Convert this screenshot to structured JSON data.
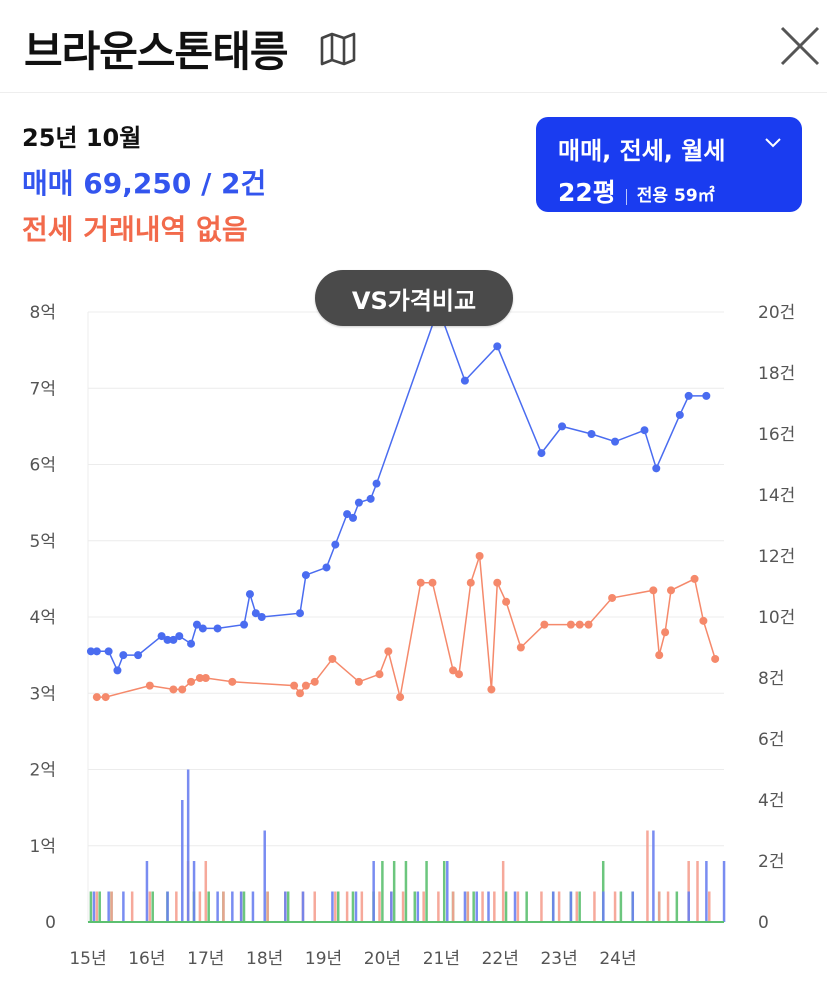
{
  "header": {
    "title": "브라운스톤태릉",
    "map_icon": "map-icon",
    "close_icon": "close-icon"
  },
  "summary": {
    "date": "25년 10월",
    "sale": "매매 69,250 / 2건",
    "jeonse": "전세 거래내역 없음"
  },
  "filter": {
    "types": "매매, 전세, 월세",
    "size_pyeong": "22평",
    "size_area": "전용 59㎡"
  },
  "compare_button": "VS가격비교",
  "colors": {
    "sale": "#4a6cf0",
    "jeonse": "#f5896b",
    "bar_sale": "#6a7ff0",
    "bar_jeonse": "#f5a090",
    "bar_rent": "#5cc070",
    "button": "#1a3cf0"
  },
  "chart_data": {
    "type": "line",
    "y_left": {
      "ticks": [
        "0",
        "1억",
        "2억",
        "3억",
        "4억",
        "5억",
        "6억",
        "7억",
        "8억"
      ],
      "ylim": [
        0,
        8
      ]
    },
    "y_right": {
      "ticks": [
        "0",
        "2건",
        "4건",
        "6건",
        "8건",
        "10건",
        "12건",
        "14건",
        "16건",
        "18건",
        "20건"
      ],
      "ylim": [
        0,
        20
      ]
    },
    "x_ticks": [
      "15년",
      "16년",
      "17년",
      "18년",
      "19년",
      "20년",
      "21년",
      "22년",
      "23년",
      "24년"
    ],
    "xlim": [
      2015.0,
      2025.8
    ],
    "grid": true,
    "series": [
      {
        "name": "매매",
        "points": [
          [
            2015.05,
            3.55
          ],
          [
            2015.15,
            3.55
          ],
          [
            2015.35,
            3.55
          ],
          [
            2015.5,
            3.3
          ],
          [
            2015.6,
            3.5
          ],
          [
            2015.85,
            3.5
          ],
          [
            2016.25,
            3.75
          ],
          [
            2016.35,
            3.7
          ],
          [
            2016.45,
            3.7
          ],
          [
            2016.55,
            3.75
          ],
          [
            2016.75,
            3.65
          ],
          [
            2016.85,
            3.9
          ],
          [
            2016.95,
            3.85
          ],
          [
            2017.2,
            3.85
          ],
          [
            2017.65,
            3.9
          ],
          [
            2017.75,
            4.3
          ],
          [
            2017.85,
            4.05
          ],
          [
            2017.95,
            4.0
          ],
          [
            2018.6,
            4.05
          ],
          [
            2018.7,
            4.55
          ],
          [
            2019.05,
            4.65
          ],
          [
            2019.2,
            4.95
          ],
          [
            2019.4,
            5.35
          ],
          [
            2019.5,
            5.3
          ],
          [
            2019.6,
            5.5
          ],
          [
            2019.8,
            5.55
          ],
          [
            2019.9,
            5.75
          ],
          [
            2020.95,
            8.05
          ],
          [
            2021.4,
            7.1
          ],
          [
            2021.95,
            7.55
          ],
          [
            2022.7,
            6.15
          ],
          [
            2023.05,
            6.5
          ],
          [
            2023.55,
            6.4
          ],
          [
            2023.95,
            6.3
          ],
          [
            2024.45,
            6.45
          ],
          [
            2024.65,
            5.95
          ],
          [
            2025.05,
            6.65
          ],
          [
            2025.2,
            6.9
          ],
          [
            2025.5,
            6.9
          ]
        ]
      },
      {
        "name": "전세",
        "points": [
          [
            2015.15,
            2.95
          ],
          [
            2015.3,
            2.95
          ],
          [
            2016.05,
            3.1
          ],
          [
            2016.45,
            3.05
          ],
          [
            2016.6,
            3.05
          ],
          [
            2016.75,
            3.15
          ],
          [
            2016.9,
            3.2
          ],
          [
            2017.0,
            3.2
          ],
          [
            2017.45,
            3.15
          ],
          [
            2018.5,
            3.1
          ],
          [
            2018.6,
            3.0
          ],
          [
            2018.7,
            3.1
          ],
          [
            2018.85,
            3.15
          ],
          [
            2019.15,
            3.45
          ],
          [
            2019.6,
            3.15
          ],
          [
            2019.95,
            3.25
          ],
          [
            2020.1,
            3.55
          ],
          [
            2020.3,
            2.95
          ],
          [
            2020.65,
            4.45
          ],
          [
            2020.85,
            4.45
          ],
          [
            2021.2,
            3.3
          ],
          [
            2021.3,
            3.25
          ],
          [
            2021.5,
            4.45
          ],
          [
            2021.65,
            4.8
          ],
          [
            2021.85,
            3.05
          ],
          [
            2021.95,
            4.45
          ],
          [
            2022.1,
            4.2
          ],
          [
            2022.35,
            3.6
          ],
          [
            2022.75,
            3.9
          ],
          [
            2023.2,
            3.9
          ],
          [
            2023.35,
            3.9
          ],
          [
            2023.5,
            3.9
          ],
          [
            2023.9,
            4.25
          ],
          [
            2024.6,
            4.35
          ],
          [
            2024.7,
            3.5
          ],
          [
            2024.8,
            3.8
          ],
          [
            2024.9,
            4.35
          ],
          [
            2025.3,
            4.5
          ],
          [
            2025.45,
            3.95
          ],
          [
            2025.65,
            3.45
          ]
        ]
      }
    ],
    "volume_sale": [
      [
        2015.05,
        1
      ],
      [
        2015.3,
        1
      ],
      [
        2015.55,
        1
      ],
      [
        2015.95,
        2
      ],
      [
        2016.3,
        1
      ],
      [
        2016.55,
        4
      ],
      [
        2016.65,
        5
      ],
      [
        2016.75,
        2
      ],
      [
        2017.15,
        1
      ],
      [
        2017.4,
        1
      ],
      [
        2017.55,
        1
      ],
      [
        2017.75,
        1
      ],
      [
        2017.95,
        3
      ],
      [
        2018.3,
        1
      ],
      [
        2018.6,
        1
      ],
      [
        2019.1,
        1
      ],
      [
        2019.5,
        1
      ],
      [
        2019.8,
        2
      ],
      [
        2020.1,
        1
      ],
      [
        2020.55,
        1
      ],
      [
        2021.05,
        2
      ],
      [
        2021.35,
        1
      ],
      [
        2021.55,
        1
      ],
      [
        2021.75,
        1
      ],
      [
        2022.2,
        1
      ],
      [
        2022.85,
        1
      ],
      [
        2023.15,
        1
      ],
      [
        2023.7,
        1
      ],
      [
        2024.2,
        1
      ],
      [
        2024.55,
        3
      ],
      [
        2025.15,
        1
      ],
      [
        2025.45,
        2
      ],
      [
        2025.75,
        2
      ]
    ],
    "volume_jeonse": [
      [
        2015.15,
        1
      ],
      [
        2015.4,
        1
      ],
      [
        2015.75,
        1
      ],
      [
        2016.05,
        1
      ],
      [
        2016.5,
        1
      ],
      [
        2016.7,
        2
      ],
      [
        2016.9,
        1
      ],
      [
        2017.0,
        2
      ],
      [
        2017.3,
        1
      ],
      [
        2017.6,
        1
      ],
      [
        2018.05,
        1
      ],
      [
        2018.35,
        1
      ],
      [
        2018.65,
        1
      ],
      [
        2018.85,
        1
      ],
      [
        2019.2,
        1
      ],
      [
        2019.4,
        1
      ],
      [
        2019.65,
        1
      ],
      [
        2019.95,
        1
      ],
      [
        2020.15,
        1
      ],
      [
        2020.35,
        1
      ],
      [
        2020.7,
        1
      ],
      [
        2020.95,
        1
      ],
      [
        2021.2,
        1
      ],
      [
        2021.45,
        1
      ],
      [
        2021.7,
        1
      ],
      [
        2021.9,
        1
      ],
      [
        2022.05,
        2
      ],
      [
        2022.3,
        1
      ],
      [
        2022.7,
        1
      ],
      [
        2023.0,
        1
      ],
      [
        2023.3,
        1
      ],
      [
        2023.6,
        1
      ],
      [
        2023.95,
        1
      ],
      [
        2024.5,
        3
      ],
      [
        2024.7,
        1
      ],
      [
        2024.85,
        1
      ],
      [
        2025.2,
        2
      ],
      [
        2025.35,
        2
      ],
      [
        2025.55,
        1
      ]
    ],
    "volume_rent": [
      [
        2015.1,
        1
      ],
      [
        2015.25,
        1
      ],
      [
        2015.45,
        1
      ],
      [
        2016.15,
        1
      ],
      [
        2016.4,
        1
      ],
      [
        2016.85,
        1
      ],
      [
        2017.1,
        1
      ],
      [
        2017.35,
        1
      ],
      [
        2017.7,
        1
      ],
      [
        2018.1,
        1
      ],
      [
        2018.45,
        1
      ],
      [
        2019.3,
        1
      ],
      [
        2019.55,
        1
      ],
      [
        2019.9,
        1
      ],
      [
        2020.05,
        2
      ],
      [
        2020.25,
        2
      ],
      [
        2020.45,
        2
      ],
      [
        2020.6,
        1
      ],
      [
        2020.8,
        2
      ],
      [
        2021.1,
        2
      ],
      [
        2021.25,
        1
      ],
      [
        2021.5,
        1
      ],
      [
        2021.6,
        1
      ],
      [
        2022.15,
        1
      ],
      [
        2022.5,
        1
      ],
      [
        2022.95,
        1
      ],
      [
        2023.25,
        1
      ],
      [
        2023.4,
        1
      ],
      [
        2023.8,
        2
      ],
      [
        2024.1,
        1
      ],
      [
        2024.3,
        1
      ],
      [
        2024.75,
        1
      ],
      [
        2025.05,
        1
      ]
    ]
  }
}
